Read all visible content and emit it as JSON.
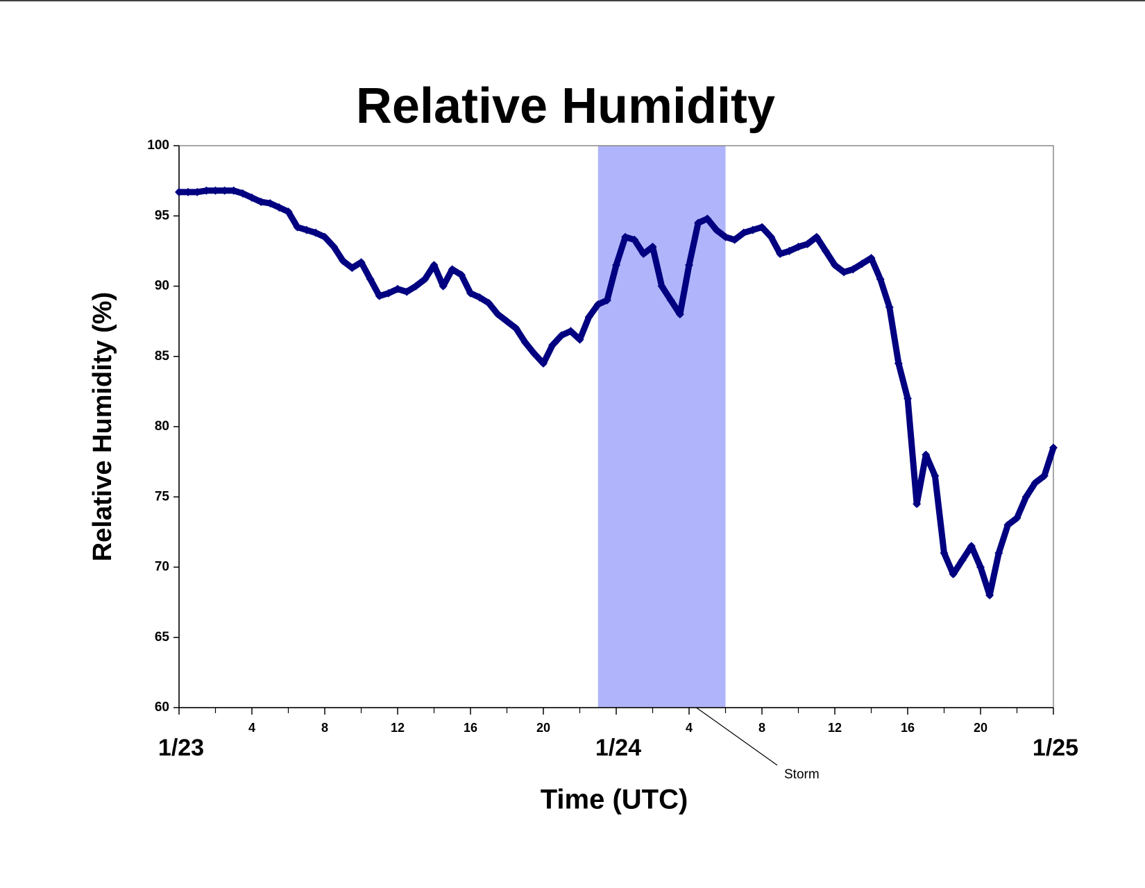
{
  "chart_data": {
    "type": "scatter",
    "title": "Relative Humidity",
    "x_label": "Time (UTC)",
    "y_label": "Relative Humidity (%)",
    "color": "#000080",
    "x": [
      0,
      0.5,
      1,
      1.5,
      2,
      2.5,
      3,
      3.5,
      4,
      4.5,
      5,
      5.5,
      6,
      6.5,
      7,
      7.5,
      8,
      8.5,
      9,
      9.5,
      10,
      10.5,
      11,
      11.5,
      12,
      12.5,
      13,
      13.5,
      14,
      14.5,
      15,
      15.5,
      16,
      16.5,
      17,
      17.5,
      18,
      18.5,
      19,
      19.5,
      20,
      20.5,
      21,
      21.5,
      22,
      22.5,
      23,
      23.5,
      24,
      24.5,
      25,
      25.5,
      26,
      26.5,
      27,
      27.5,
      28,
      28.5,
      29,
      29.5,
      30,
      30.5,
      31,
      31.5,
      32,
      32.5,
      33,
      33.5,
      34,
      34.5,
      35,
      35.5,
      36,
      36.5,
      37,
      37.5,
      38,
      38.5,
      39,
      39.5,
      40,
      40.5,
      41,
      41.5,
      42,
      42.5,
      43,
      43.5,
      44,
      44.5,
      45,
      45.5,
      46,
      46.5,
      47,
      47.5,
      48
    ],
    "values": [
      96.7,
      96.7,
      96.7,
      96.8,
      96.8,
      96.8,
      96.8,
      96.6,
      96.3,
      96.0,
      95.9,
      95.6,
      95.3,
      94.2,
      94.0,
      93.8,
      93.5,
      92.8,
      91.8,
      91.3,
      91.7,
      90.5,
      89.3,
      89.5,
      89.8,
      89.6,
      90.0,
      90.5,
      91.5,
      90.0,
      91.2,
      90.8,
      89.5,
      89.2,
      88.8,
      88.0,
      87.5,
      87.0,
      86.0,
      85.2,
      84.5,
      85.8,
      86.5,
      86.8,
      86.2,
      87.8,
      88.7,
      89.0,
      91.5,
      93.5,
      93.3,
      92.3,
      92.8,
      90.0,
      89.0,
      88.0,
      91.5,
      94.5,
      94.8,
      94.0,
      93.5,
      93.3,
      93.8,
      94.0,
      94.2,
      93.5,
      92.3,
      92.5,
      92.8,
      93.0,
      93.5,
      92.5,
      91.5,
      91.0,
      91.2,
      91.6,
      92.0,
      90.5,
      88.5,
      84.5,
      82.0,
      74.5,
      78.0,
      76.5,
      71.0,
      69.5,
      70.5,
      71.5,
      70.0,
      68.0,
      71.0,
      73.0,
      73.5,
      75.0,
      76.0,
      76.5,
      78.5
    ],
    "xlim": [
      0,
      48
    ],
    "ylim": [
      60,
      100
    ],
    "yticks": [
      60,
      65,
      70,
      75,
      80,
      85,
      90,
      95,
      100
    ],
    "xticks": [
      4,
      8,
      12,
      16,
      20,
      {
        "value": 28,
        "label": "4"
      },
      {
        "value": 32,
        "label": "8"
      },
      {
        "value": 36,
        "label": "12"
      },
      {
        "value": 40,
        "label": "16"
      },
      {
        "value": 44,
        "label": "20"
      }
    ],
    "date_ticks": [
      {
        "value": 0,
        "label": "1/23"
      },
      {
        "value": 24,
        "label": "1/24"
      },
      {
        "value": 48,
        "label": "1/25"
      }
    ],
    "xminorticks": [
      2,
      6,
      10,
      14,
      18,
      22,
      26,
      30,
      34,
      38,
      42,
      46
    ],
    "shaded_span": {
      "x": [
        23,
        30
      ],
      "color": "#b0b4fa"
    },
    "annotation": {
      "text": "Storm",
      "x": 28.4
    }
  }
}
